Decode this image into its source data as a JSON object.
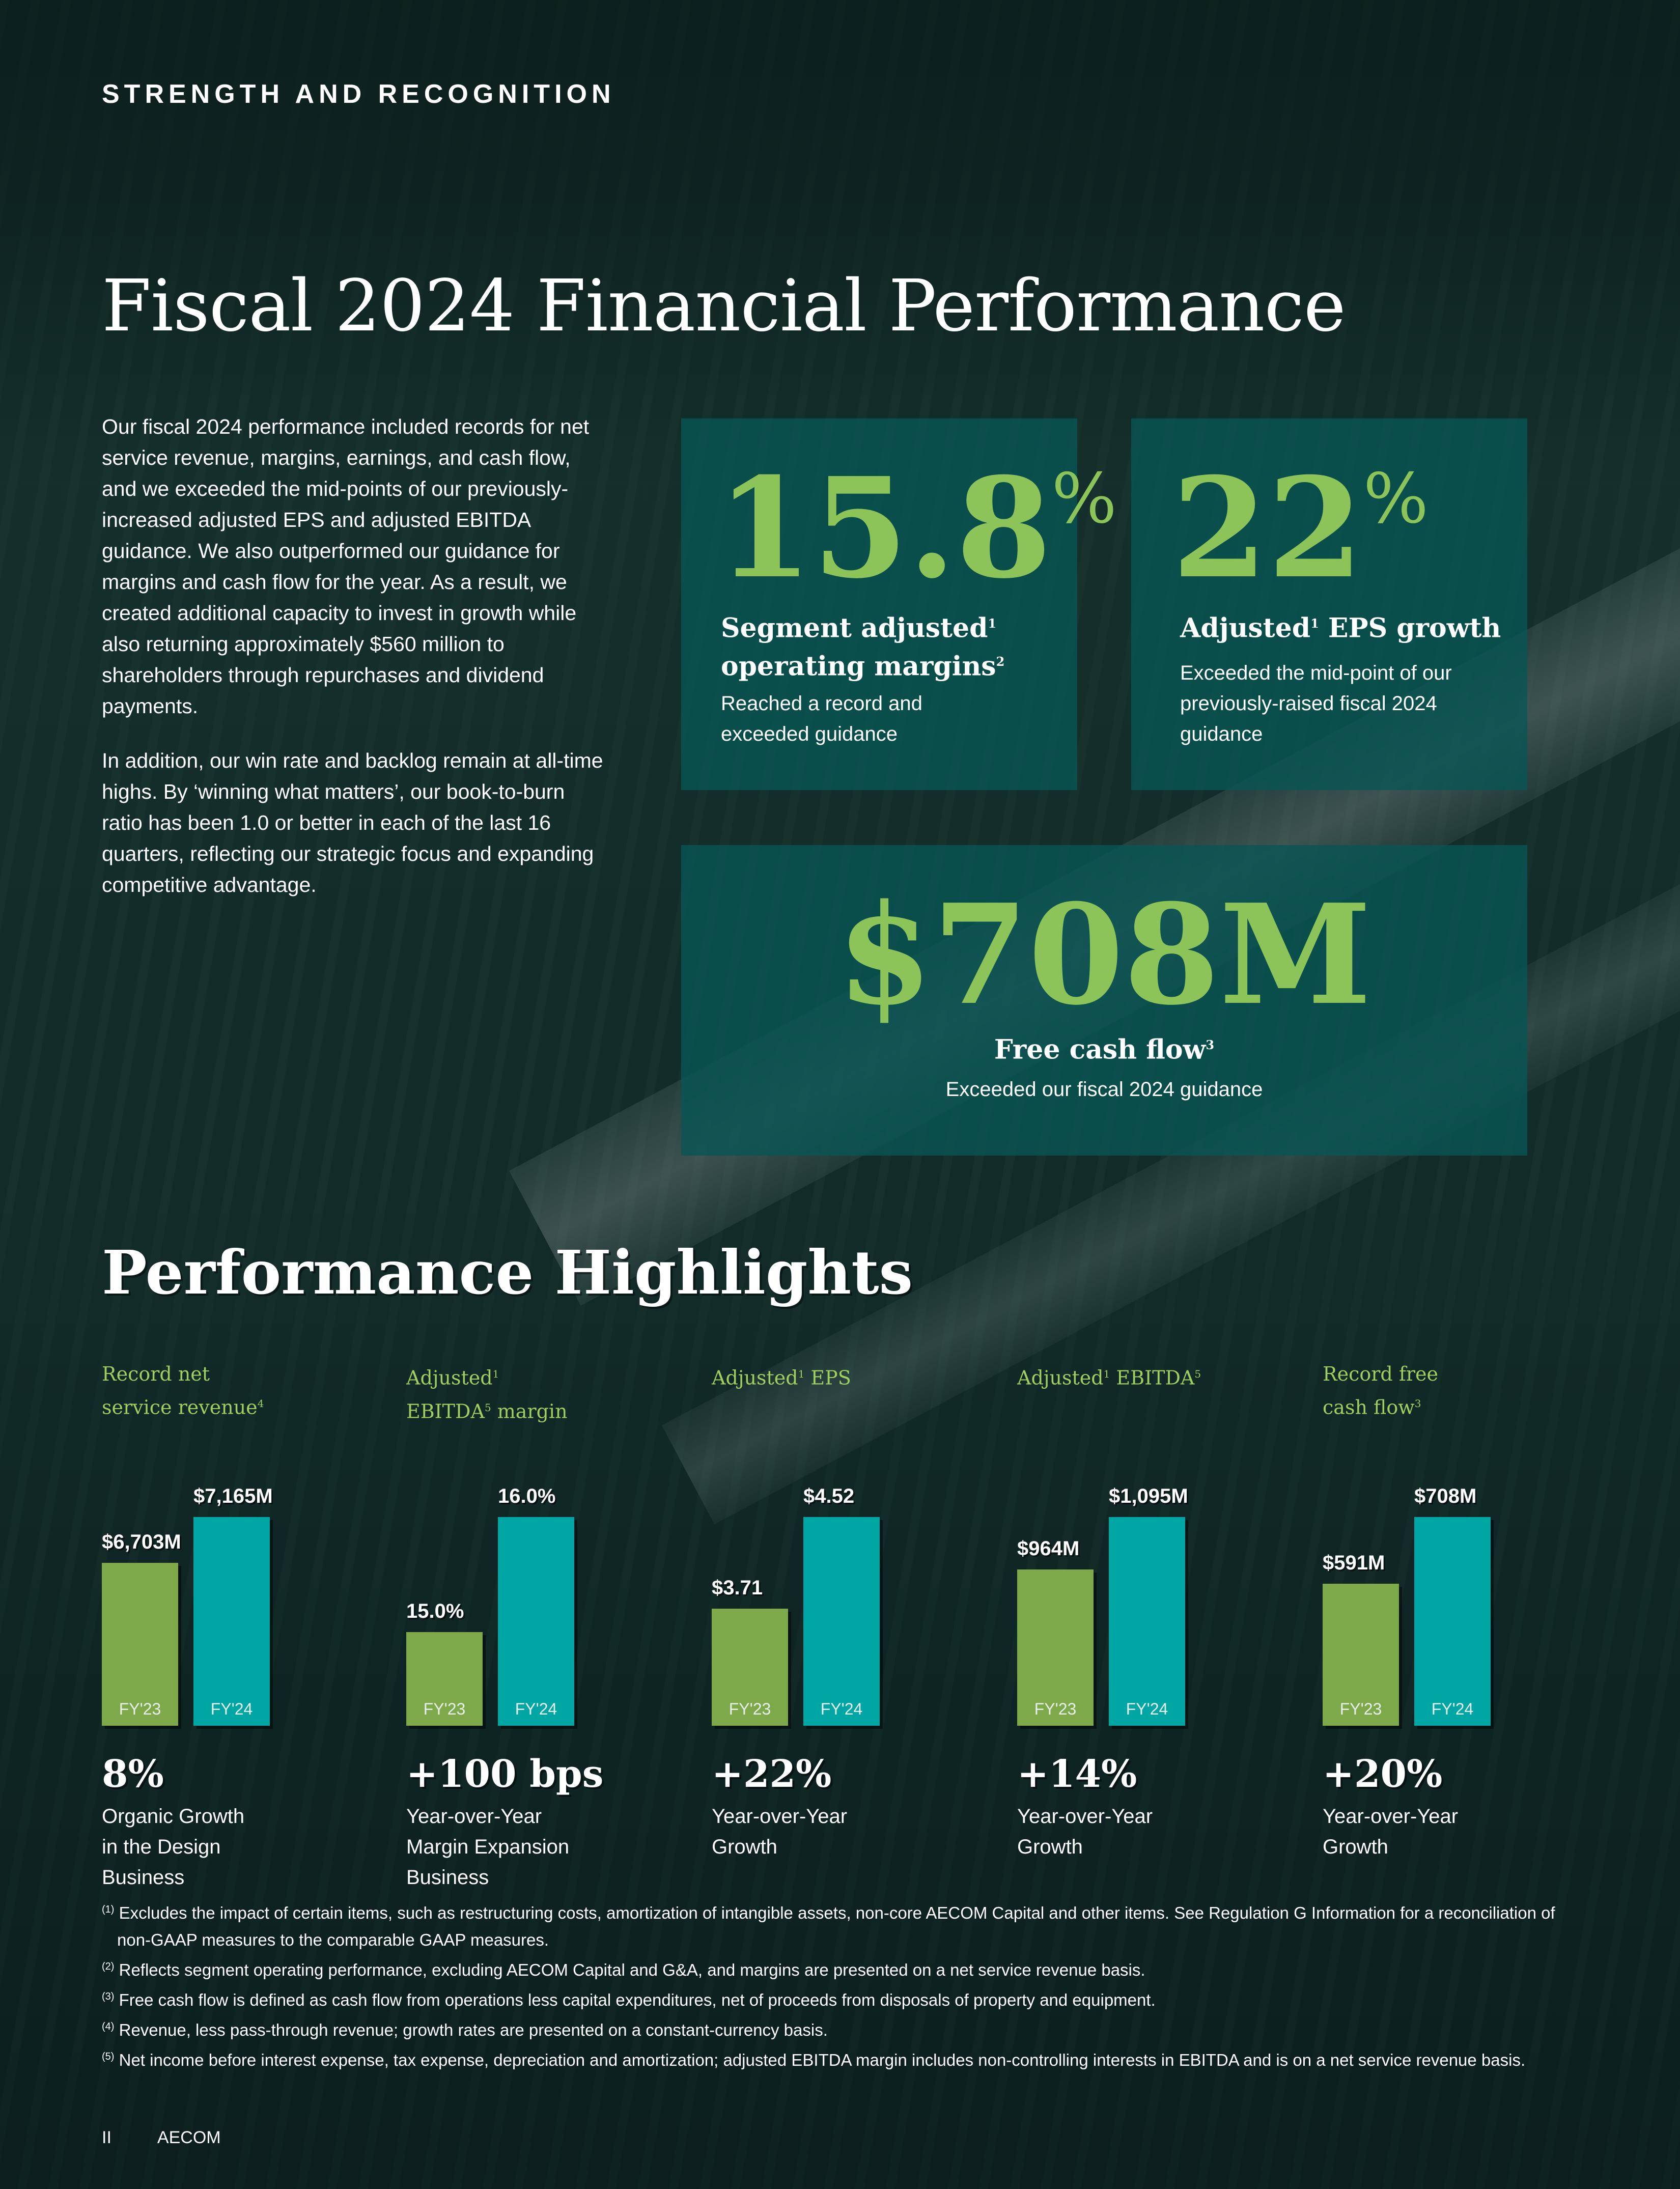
{
  "header": {
    "eyebrow": "STRENGTH AND RECOGNITION",
    "title": "Fiscal 2024 Financial Performance"
  },
  "intro": {
    "p1": "Our fiscal 2024 performance included records for net service revenue, margins, earnings, and cash flow, and we exceeded the mid-points of our previously-increased adjusted EPS and adjusted EBITDA guidance. We also outperformed our guidance for margins and cash flow for the year. As a result, we created additional capacity to invest in growth while also returning approximately $560 million to shareholders through repurchases and dividend payments.",
    "p2": "In addition, our win rate and backlog remain at all-time highs. By ‘winning what matters’, our book-to-burn ratio has been 1.0 or better in each of the last 16 quarters, reflecting our strategic focus and expanding competitive advantage."
  },
  "cards": {
    "margin": {
      "value": "15.8",
      "unit": "%",
      "title_a": "Segment adjusted",
      "sup_a": "1",
      "title_b": "operating margins",
      "sup_b": "2",
      "desc": "Reached a record and exceeded guidance"
    },
    "eps": {
      "value": "22",
      "unit": "%",
      "title_a": "Adjusted",
      "sup_a": "1",
      "title_b": " EPS growth",
      "desc": "Exceeded the mid-point of our previously-raised fiscal 2024 guidance"
    },
    "fcf": {
      "value": "$708M",
      "title": "Free cash flow",
      "sup": "3",
      "desc": "Exceeded our fiscal 2024 guidance"
    }
  },
  "highlights": {
    "title": "Performance Highlights",
    "year_labels": [
      "FY'23",
      "FY'24"
    ],
    "items": [
      {
        "label_a": "Record net",
        "label_b": "service revenue",
        "sup": "4",
        "fy23_label": "$6,703M",
        "fy24_label": "$7,165M",
        "metric": "8%",
        "metric_desc": "Organic Growth\nin the Design\nBusiness"
      },
      {
        "label_a": "Adjusted",
        "label_a_sup": "1",
        "label_b": "EBITDA",
        "sup": "5",
        "label_c": " margin",
        "fy23_label": "15.0%",
        "fy24_label": "16.0%",
        "metric": "+100 bps",
        "metric_desc": "Year-over-Year\nMargin Expansion\nBusiness"
      },
      {
        "label_a": "Adjusted",
        "sup": "1",
        "label_b": " EPS",
        "fy23_label": "$3.71",
        "fy24_label": "$4.52",
        "metric": "+22%",
        "metric_desc": "Year-over-Year\nGrowth"
      },
      {
        "label_a": "Adjusted",
        "sup": "1",
        "label_b": " EBITDA",
        "sup2": "5",
        "fy23_label": "$964M",
        "fy24_label": "$1,095M",
        "metric": "+14%",
        "metric_desc": "Year-over-Year\nGrowth"
      },
      {
        "label_a": "Record free",
        "label_b": "cash flow",
        "sup": "3",
        "fy23_label": "$591M",
        "fy24_label": "$708M",
        "metric": "+20%",
        "metric_desc": "Year-over-Year\nGrowth"
      }
    ]
  },
  "chart_data": [
    {
      "type": "bar",
      "categories": [
        "FY'23",
        "FY'24"
      ],
      "values": [
        6703,
        7165
      ],
      "title": "Record net service revenue"
    },
    {
      "type": "bar",
      "categories": [
        "FY'23",
        "FY'24"
      ],
      "values": [
        15.0,
        16.0
      ],
      "title": "Adjusted EBITDA margin"
    },
    {
      "type": "bar",
      "categories": [
        "FY'23",
        "FY'24"
      ],
      "values": [
        3.71,
        4.52
      ],
      "title": "Adjusted EPS"
    },
    {
      "type": "bar",
      "categories": [
        "FY'23",
        "FY'24"
      ],
      "values": [
        964,
        1095
      ],
      "title": "Adjusted EBITDA"
    },
    {
      "type": "bar",
      "categories": [
        "FY'23",
        "FY'24"
      ],
      "values": [
        591,
        708
      ],
      "title": "Record free cash flow"
    }
  ],
  "footnotes": [
    {
      "num": "(1)",
      "text": "Excludes the impact of certain items, such as restructuring costs, amortization of intangible assets, non-core AECOM Capital and other items. See Regulation G Information for a reconciliation of non-GAAP measures to the comparable GAAP measures."
    },
    {
      "num": "(2)",
      "text": "Reflects segment operating performance, excluding AECOM Capital and G&A, and margins are presented on a net service revenue basis."
    },
    {
      "num": "(3)",
      "text": "Free cash flow is defined as cash flow from operations less capital expenditures, net of proceeds from disposals of property and equipment."
    },
    {
      "num": "(4)",
      "text": "Revenue, less pass-through revenue; growth rates are presented on a constant-currency basis."
    },
    {
      "num": "(5)",
      "text": "Net income before interest expense, tax expense, depreciation and amortization; adjusted EBITDA margin includes non-controlling interests in EBITDA and is on a net service revenue basis."
    }
  ],
  "footer": {
    "page": "II",
    "brand": "AECOM"
  },
  "colors": {
    "accent_green": "#8cc45a",
    "fy23_bar": "#7ea94a",
    "fy24_bar": "#00a6a3",
    "card_bg": "#085554"
  }
}
